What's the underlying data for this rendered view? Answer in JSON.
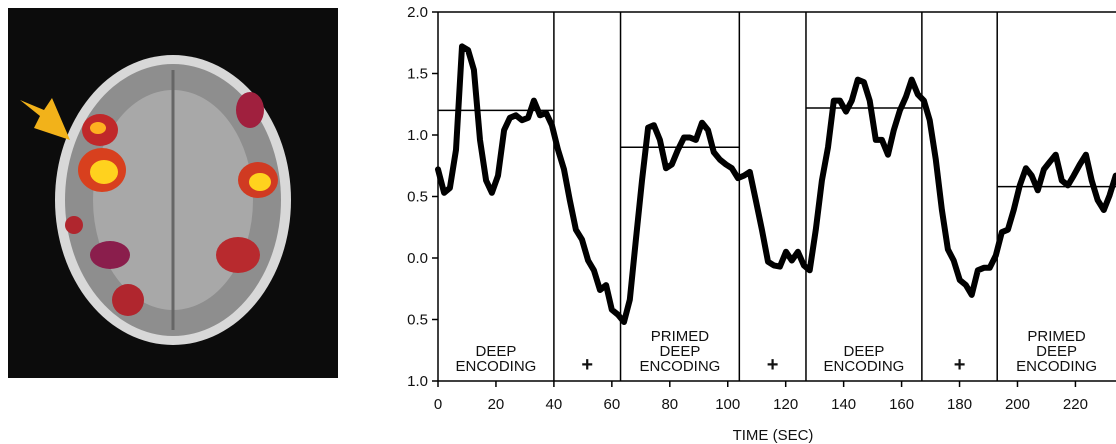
{
  "chart_data": {
    "type": "line",
    "xlabel": "TIME (SEC)",
    "xlim": [
      0,
      234
    ],
    "ylim": [
      -1,
      2
    ],
    "xticks": [
      0,
      20,
      40,
      60,
      80,
      100,
      120,
      140,
      160,
      180,
      200,
      220
    ],
    "yticks": [
      {
        "value": 2,
        "label": "2.0"
      },
      {
        "value": 1.5,
        "label": "1.5"
      },
      {
        "value": 1,
        "label": "1.0"
      },
      {
        "value": 0.5,
        "label": "0.5"
      },
      {
        "value": 0,
        "label": "0.0"
      },
      {
        "value": -0.5,
        "label": "0.5"
      },
      {
        "value": -1,
        "label": "1.0"
      }
    ],
    "x": [
      0,
      2.1,
      4.1,
      6.2,
      8.3,
      10.4,
      12.4,
      14.5,
      16.6,
      18.6,
      20.7,
      22.8,
      24.8,
      26.9,
      29,
      31.1,
      33.1,
      35.2,
      37.3,
      39.3,
      41.4,
      43.5,
      45.5,
      47.6,
      49.7,
      51.8,
      53.8,
      55.9,
      58,
      60,
      62.1,
      64.2,
      66.2,
      68.3,
      70.4,
      72.5,
      74.5,
      76.6,
      78.7,
      80.7,
      82.8,
      84.9,
      86.9,
      89,
      91.1,
      93.2,
      95.2,
      97.3,
      99.4,
      101.4,
      103.5,
      105.6,
      107.6,
      109.7,
      111.8,
      113.9,
      115.9,
      118,
      120.1,
      122.1,
      124.2,
      126.3,
      128.3,
      130.4,
      132.5,
      134.6,
      136.6,
      138.7,
      140.8,
      142.8,
      144.9,
      147,
      149,
      151.1,
      153.2,
      155.3,
      157.3,
      159.4,
      161.5,
      163.5,
      165.6,
      167.7,
      169.7,
      171.8,
      173.9,
      176,
      178,
      180.1,
      182.2,
      184.2,
      186.3,
      188.4,
      190.4,
      192.5,
      194.6,
      196.7,
      198.7,
      200.8,
      202.9,
      204.9,
      207,
      209.1,
      211.1,
      213.2,
      215.3,
      217.4,
      219.4,
      221.5,
      223.6,
      225.6,
      227.7,
      229.8,
      231.8,
      233.9
    ],
    "series": [
      {
        "color": "#000000",
        "values": [
          0.72,
          0.53,
          0.57,
          0.88,
          1.72,
          1.69,
          1.53,
          0.96,
          0.63,
          0.53,
          0.67,
          1.04,
          1.14,
          1.16,
          1.12,
          1.14,
          1.28,
          1.16,
          1.18,
          1.08,
          0.88,
          0.72,
          0.47,
          0.23,
          0.15,
          -0.02,
          -0.1,
          -0.26,
          -0.22,
          -0.42,
          -0.46,
          -0.52,
          -0.34,
          0.15,
          0.63,
          1.06,
          1.08,
          0.96,
          0.73,
          0.76,
          0.88,
          0.98,
          0.98,
          0.96,
          1.1,
          1.04,
          0.86,
          0.8,
          0.76,
          0.73,
          0.65,
          0.67,
          0.7,
          0.47,
          0.23,
          -0.03,
          -0.06,
          -0.07,
          0.05,
          -0.02,
          0.05,
          -0.06,
          -0.1,
          0.23,
          0.63,
          0.9,
          1.28,
          1.28,
          1.19,
          1.28,
          1.45,
          1.43,
          1.28,
          0.96,
          0.96,
          0.84,
          1.04,
          1.2,
          1.31,
          1.45,
          1.33,
          1.28,
          1.12,
          0.8,
          0.39,
          0.07,
          -0.02,
          -0.18,
          -0.22,
          -0.3,
          -0.1,
          -0.08,
          -0.08,
          0.02,
          0.21,
          0.23,
          0.39,
          0.59,
          0.73,
          0.67,
          0.55,
          0.72,
          0.78,
          0.84,
          0.63,
          0.59,
          0.67,
          0.76,
          0.84,
          0.63,
          0.47,
          0.39,
          0.51,
          0.67
        ]
      }
    ],
    "blocks": [
      {
        "start": 0,
        "end": 40,
        "label": [
          "DEEP",
          "ENCODING"
        ],
        "mean": 1.2
      },
      {
        "start": 40,
        "end": 63,
        "label": [
          "+"
        ]
      },
      {
        "start": 63,
        "end": 104,
        "label": [
          "PRIMED",
          "DEEP",
          "ENCODING"
        ],
        "mean": 0.9
      },
      {
        "start": 104,
        "end": 127,
        "label": [
          "+"
        ]
      },
      {
        "start": 127,
        "end": 167,
        "label": [
          "DEEP",
          "ENCODING"
        ],
        "mean": 1.22
      },
      {
        "start": 167,
        "end": 193,
        "label": [
          "+"
        ]
      },
      {
        "start": 193,
        "end": 234,
        "label": [
          "PRIMED",
          "DEEP",
          "ENCODING"
        ],
        "mean": 0.58
      }
    ]
  }
}
